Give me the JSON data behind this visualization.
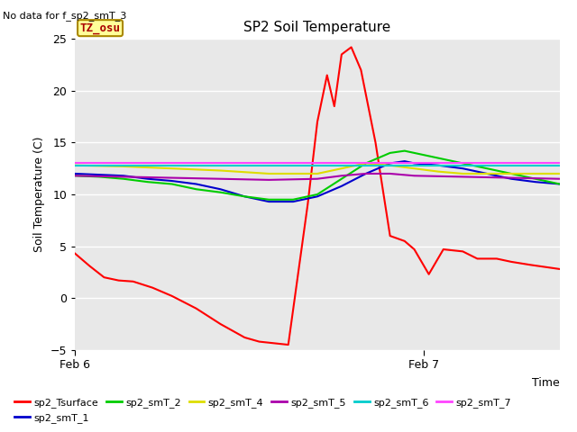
{
  "title": "SP2 Soil Temperature",
  "ylabel": "Soil Temperature (C)",
  "xlabel": "Time",
  "note": "No data for f_sp2_smT_3",
  "tz_label": "TZ_osu",
  "xlim": [
    0,
    1
  ],
  "ylim": [
    -5,
    25
  ],
  "yticks": [
    -5,
    0,
    5,
    10,
    15,
    20,
    25
  ],
  "xtick_labels": [
    "Feb 6",
    "Feb 7"
  ],
  "xtick_positions": [
    0.0,
    0.72
  ],
  "bg_color": "#e8e8e8",
  "series": {
    "sp2_Tsurface": {
      "color": "#ff0000",
      "points": [
        [
          0.0,
          4.3
        ],
        [
          0.03,
          3.1
        ],
        [
          0.06,
          2.0
        ],
        [
          0.09,
          1.7
        ],
        [
          0.12,
          1.6
        ],
        [
          0.16,
          1.0
        ],
        [
          0.2,
          0.2
        ],
        [
          0.25,
          -1.0
        ],
        [
          0.3,
          -2.5
        ],
        [
          0.35,
          -3.8
        ],
        [
          0.38,
          -4.2
        ],
        [
          0.42,
          -4.4
        ],
        [
          0.44,
          -4.5
        ],
        [
          0.48,
          9.0
        ],
        [
          0.5,
          17.0
        ],
        [
          0.52,
          21.5
        ],
        [
          0.535,
          18.5
        ],
        [
          0.55,
          23.5
        ],
        [
          0.57,
          24.2
        ],
        [
          0.59,
          22.0
        ],
        [
          0.62,
          15.0
        ],
        [
          0.65,
          6.0
        ],
        [
          0.68,
          5.5
        ],
        [
          0.7,
          4.7
        ],
        [
          0.73,
          2.3
        ],
        [
          0.76,
          4.7
        ],
        [
          0.8,
          4.5
        ],
        [
          0.83,
          3.8
        ],
        [
          0.87,
          3.8
        ],
        [
          0.9,
          3.5
        ],
        [
          0.94,
          3.2
        ],
        [
          0.97,
          3.0
        ],
        [
          1.0,
          2.8
        ]
      ]
    },
    "sp2_smT_1": {
      "color": "#0000cc",
      "points": [
        [
          0.0,
          12.0
        ],
        [
          0.05,
          11.9
        ],
        [
          0.1,
          11.8
        ],
        [
          0.15,
          11.5
        ],
        [
          0.2,
          11.3
        ],
        [
          0.25,
          11.0
        ],
        [
          0.3,
          10.5
        ],
        [
          0.35,
          9.8
        ],
        [
          0.4,
          9.3
        ],
        [
          0.45,
          9.3
        ],
        [
          0.5,
          9.8
        ],
        [
          0.55,
          10.8
        ],
        [
          0.6,
          12.0
        ],
        [
          0.65,
          13.0
        ],
        [
          0.68,
          13.2
        ],
        [
          0.7,
          13.0
        ],
        [
          0.75,
          12.8
        ],
        [
          0.8,
          12.5
        ],
        [
          0.85,
          12.0
        ],
        [
          0.9,
          11.5
        ],
        [
          0.95,
          11.2
        ],
        [
          1.0,
          11.0
        ]
      ]
    },
    "sp2_smT_2": {
      "color": "#00cc00",
      "points": [
        [
          0.0,
          11.8
        ],
        [
          0.05,
          11.7
        ],
        [
          0.1,
          11.5
        ],
        [
          0.15,
          11.2
        ],
        [
          0.2,
          11.0
        ],
        [
          0.25,
          10.5
        ],
        [
          0.3,
          10.2
        ],
        [
          0.35,
          9.8
        ],
        [
          0.4,
          9.5
        ],
        [
          0.45,
          9.5
        ],
        [
          0.5,
          10.0
        ],
        [
          0.55,
          11.5
        ],
        [
          0.6,
          13.0
        ],
        [
          0.65,
          14.0
        ],
        [
          0.68,
          14.2
        ],
        [
          0.7,
          14.0
        ],
        [
          0.75,
          13.5
        ],
        [
          0.8,
          13.0
        ],
        [
          0.85,
          12.5
        ],
        [
          0.9,
          12.0
        ],
        [
          0.95,
          11.5
        ],
        [
          1.0,
          11.0
        ]
      ]
    },
    "sp2_smT_4": {
      "color": "#dddd00",
      "points": [
        [
          0.0,
          12.8
        ],
        [
          0.1,
          12.7
        ],
        [
          0.2,
          12.5
        ],
        [
          0.3,
          12.3
        ],
        [
          0.4,
          12.0
        ],
        [
          0.5,
          12.0
        ],
        [
          0.55,
          12.5
        ],
        [
          0.6,
          13.0
        ],
        [
          0.65,
          12.8
        ],
        [
          0.7,
          12.5
        ],
        [
          0.75,
          12.2
        ],
        [
          0.8,
          12.0
        ],
        [
          0.9,
          12.0
        ],
        [
          1.0,
          12.0
        ]
      ]
    },
    "sp2_smT_5": {
      "color": "#aa00aa",
      "points": [
        [
          0.0,
          11.8
        ],
        [
          0.1,
          11.7
        ],
        [
          0.2,
          11.6
        ],
        [
          0.3,
          11.5
        ],
        [
          0.4,
          11.4
        ],
        [
          0.5,
          11.5
        ],
        [
          0.55,
          11.8
        ],
        [
          0.6,
          12.0
        ],
        [
          0.65,
          12.0
        ],
        [
          0.7,
          11.8
        ],
        [
          0.8,
          11.7
        ],
        [
          0.9,
          11.6
        ],
        [
          1.0,
          11.5
        ]
      ]
    },
    "sp2_smT_6": {
      "color": "#00cccc",
      "points": [
        [
          0.0,
          12.8
        ],
        [
          0.1,
          12.8
        ],
        [
          0.2,
          12.8
        ],
        [
          0.3,
          12.8
        ],
        [
          0.4,
          12.8
        ],
        [
          0.5,
          12.8
        ],
        [
          0.6,
          12.8
        ],
        [
          0.7,
          12.8
        ],
        [
          0.8,
          12.8
        ],
        [
          0.9,
          12.8
        ],
        [
          1.0,
          12.8
        ]
      ]
    },
    "sp2_smT_7": {
      "color": "#ff44ff",
      "points": [
        [
          0.0,
          13.0
        ],
        [
          0.1,
          13.0
        ],
        [
          0.2,
          13.0
        ],
        [
          0.3,
          13.0
        ],
        [
          0.4,
          13.0
        ],
        [
          0.5,
          13.0
        ],
        [
          0.6,
          13.0
        ],
        [
          0.7,
          13.0
        ],
        [
          0.8,
          13.0
        ],
        [
          0.9,
          13.0
        ],
        [
          1.0,
          13.0
        ]
      ]
    }
  },
  "legend_order": [
    "sp2_Tsurface",
    "sp2_smT_1",
    "sp2_smT_2",
    "sp2_smT_4",
    "sp2_smT_5",
    "sp2_smT_6",
    "sp2_smT_7"
  ]
}
